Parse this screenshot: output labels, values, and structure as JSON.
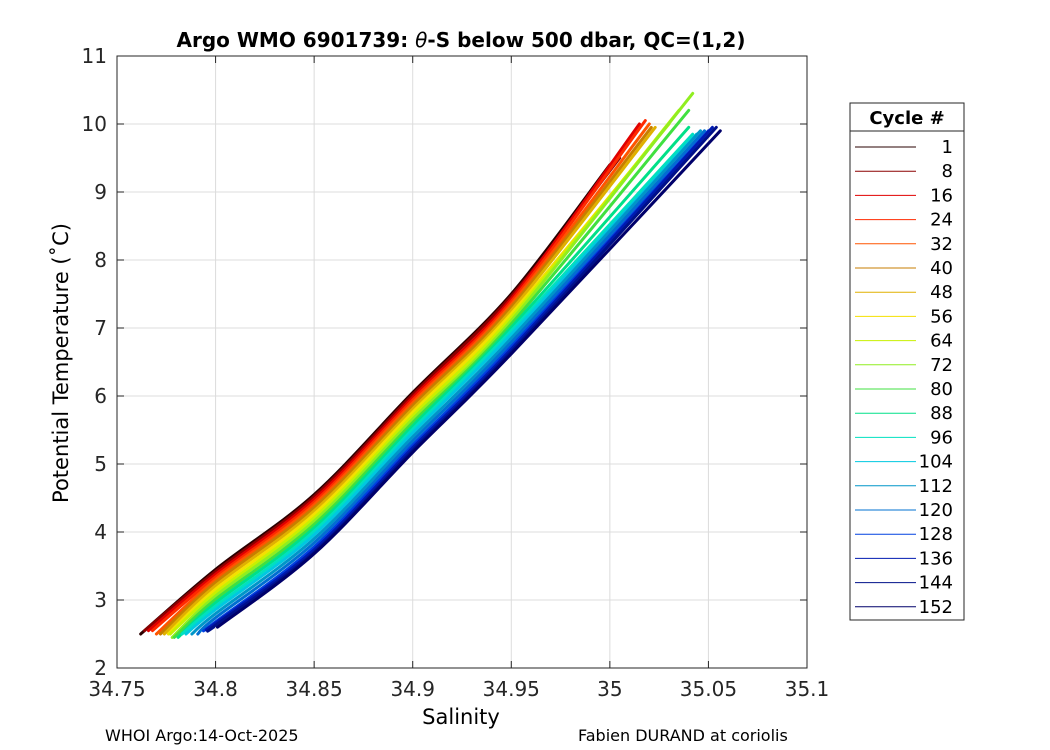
{
  "chart_data": {
    "type": "line",
    "title_prefix": "Argo WMO 6901739: ",
    "title_theta": "θ",
    "title_suffix": "-S below 500 dbar,  QC=(1,2)",
    "xlabel": "Salinity",
    "ylabel": "Potential Temperature (˚C)",
    "xlim": [
      34.75,
      35.1
    ],
    "ylim": [
      2,
      11
    ],
    "xticks": [
      34.75,
      34.8,
      34.85,
      34.9,
      34.95,
      35,
      35.05,
      35.1
    ],
    "xtick_labels": [
      "34.75",
      "34.8",
      "34.85",
      "34.9",
      "34.95",
      "35",
      "35.05",
      "35.1"
    ],
    "yticks": [
      2,
      3,
      4,
      5,
      6,
      7,
      8,
      9,
      10,
      11
    ],
    "ytick_labels": [
      "2",
      "3",
      "4",
      "5",
      "6",
      "7",
      "8",
      "9",
      "10",
      "11"
    ],
    "grid": true,
    "legend_position": "outside-right",
    "legend_title": "Cycle #",
    "series": [
      {
        "name": "1",
        "color": "#2a0000",
        "points": [
          [
            34.762,
            2.5
          ],
          [
            34.8,
            3.45
          ],
          [
            34.85,
            4.55
          ],
          [
            34.9,
            6.05
          ],
          [
            34.95,
            7.5
          ],
          [
            35.0,
            9.4
          ]
        ]
      },
      {
        "name": "8",
        "color": "#8b0000",
        "points": [
          [
            34.764,
            2.55
          ],
          [
            34.8,
            3.42
          ],
          [
            34.85,
            4.52
          ],
          [
            34.9,
            6.02
          ],
          [
            34.95,
            7.47
          ],
          [
            35.005,
            9.5
          ]
        ]
      },
      {
        "name": "16",
        "color": "#e00000",
        "points": [
          [
            34.766,
            2.55
          ],
          [
            34.8,
            3.38
          ],
          [
            34.85,
            4.48
          ],
          [
            34.9,
            5.98
          ],
          [
            34.95,
            7.43
          ],
          [
            35.015,
            10.0
          ]
        ]
      },
      {
        "name": "24",
        "color": "#ff2a00",
        "points": [
          [
            34.768,
            2.55
          ],
          [
            34.8,
            3.34
          ],
          [
            34.85,
            4.44
          ],
          [
            34.9,
            5.94
          ],
          [
            34.95,
            7.39
          ],
          [
            35.018,
            10.05
          ]
        ]
      },
      {
        "name": "32",
        "color": "#ff5500",
        "points": [
          [
            34.77,
            2.5
          ],
          [
            34.8,
            3.3
          ],
          [
            34.85,
            4.4
          ],
          [
            34.9,
            5.9
          ],
          [
            34.95,
            7.35
          ],
          [
            35.02,
            10.0
          ]
        ]
      },
      {
        "name": "40",
        "color": "#c77e00",
        "points": [
          [
            34.772,
            2.5
          ],
          [
            34.8,
            3.26
          ],
          [
            34.85,
            4.36
          ],
          [
            34.9,
            5.86
          ],
          [
            34.95,
            7.31
          ],
          [
            35.021,
            9.95
          ]
        ]
      },
      {
        "name": "48",
        "color": "#e0b000",
        "points": [
          [
            34.774,
            2.5
          ],
          [
            34.8,
            3.21
          ],
          [
            34.85,
            4.31
          ],
          [
            34.9,
            5.81
          ],
          [
            34.95,
            7.26
          ],
          [
            35.023,
            9.95
          ]
        ]
      },
      {
        "name": "56",
        "color": "#f5e000",
        "points": [
          [
            34.776,
            2.5
          ],
          [
            34.8,
            3.16
          ],
          [
            34.85,
            4.26
          ],
          [
            34.9,
            5.76
          ],
          [
            34.95,
            7.21
          ],
          [
            35.03,
            10.0
          ]
        ]
      },
      {
        "name": "64",
        "color": "#c8f000",
        "points": [
          [
            34.777,
            2.5
          ],
          [
            34.8,
            3.11
          ],
          [
            34.85,
            4.21
          ],
          [
            34.9,
            5.71
          ],
          [
            34.95,
            7.16
          ],
          [
            35.035,
            10.2
          ]
        ]
      },
      {
        "name": "72",
        "color": "#90ee20",
        "points": [
          [
            34.778,
            2.45
          ],
          [
            34.8,
            3.06
          ],
          [
            34.85,
            4.16
          ],
          [
            34.9,
            5.66
          ],
          [
            34.95,
            7.11
          ],
          [
            35.042,
            10.45
          ]
        ]
      },
      {
        "name": "80",
        "color": "#40e040",
        "points": [
          [
            34.779,
            2.45
          ],
          [
            34.8,
            3.01
          ],
          [
            34.85,
            4.11
          ],
          [
            34.9,
            5.61
          ],
          [
            34.95,
            7.06
          ],
          [
            35.04,
            10.2
          ]
        ]
      },
      {
        "name": "88",
        "color": "#00e088",
        "points": [
          [
            34.781,
            2.45
          ],
          [
            34.8,
            2.96
          ],
          [
            34.85,
            4.06
          ],
          [
            34.9,
            5.56
          ],
          [
            34.95,
            7.01
          ],
          [
            35.04,
            9.95
          ]
        ]
      },
      {
        "name": "96",
        "color": "#00e0c0",
        "points": [
          [
            34.783,
            2.5
          ],
          [
            34.8,
            2.91
          ],
          [
            34.85,
            4.01
          ],
          [
            34.9,
            5.51
          ],
          [
            34.95,
            6.96
          ],
          [
            35.042,
            9.85
          ]
        ]
      },
      {
        "name": "104",
        "color": "#00c8e0",
        "points": [
          [
            34.785,
            2.5
          ],
          [
            34.8,
            2.86
          ],
          [
            34.85,
            3.96
          ],
          [
            34.9,
            5.46
          ],
          [
            34.95,
            6.91
          ],
          [
            35.044,
            9.85
          ]
        ]
      },
      {
        "name": "112",
        "color": "#0096c8",
        "points": [
          [
            34.788,
            2.5
          ],
          [
            34.8,
            2.8
          ],
          [
            34.85,
            3.9
          ],
          [
            34.9,
            5.4
          ],
          [
            34.95,
            6.85
          ],
          [
            35.046,
            9.9
          ]
        ]
      },
      {
        "name": "120",
        "color": "#0070d0",
        "points": [
          [
            34.791,
            2.5
          ],
          [
            34.8,
            2.74
          ],
          [
            34.85,
            3.84
          ],
          [
            34.9,
            5.34
          ],
          [
            34.95,
            6.79
          ],
          [
            35.048,
            9.9
          ]
        ]
      },
      {
        "name": "128",
        "color": "#0040e0",
        "points": [
          [
            34.794,
            2.55
          ],
          [
            34.8,
            2.68
          ],
          [
            34.85,
            3.78
          ],
          [
            34.9,
            5.28
          ],
          [
            34.95,
            6.73
          ],
          [
            35.05,
            9.9
          ]
        ]
      },
      {
        "name": "136",
        "color": "#001ab0",
        "points": [
          [
            34.797,
            2.6
          ],
          [
            34.8,
            2.66
          ],
          [
            34.85,
            3.74
          ],
          [
            34.9,
            5.24
          ],
          [
            34.95,
            6.69
          ],
          [
            35.052,
            9.95
          ]
        ]
      },
      {
        "name": "144",
        "color": "#00108a",
        "points": [
          [
            34.799,
            2.6
          ],
          [
            34.8,
            2.63
          ],
          [
            34.85,
            3.7
          ],
          [
            34.9,
            5.2
          ],
          [
            34.95,
            6.65
          ],
          [
            35.054,
            9.95
          ]
        ]
      },
      {
        "name": "152",
        "color": "#00006a",
        "points": [
          [
            34.801,
            2.6
          ],
          [
            34.85,
            3.68
          ],
          [
            34.9,
            5.17
          ],
          [
            34.95,
            6.62
          ],
          [
            35.056,
            9.9
          ]
        ]
      }
    ]
  },
  "footer": {
    "left": "WHOI Argo:14-Oct-2025",
    "right": "Fabien DURAND at coriolis"
  }
}
